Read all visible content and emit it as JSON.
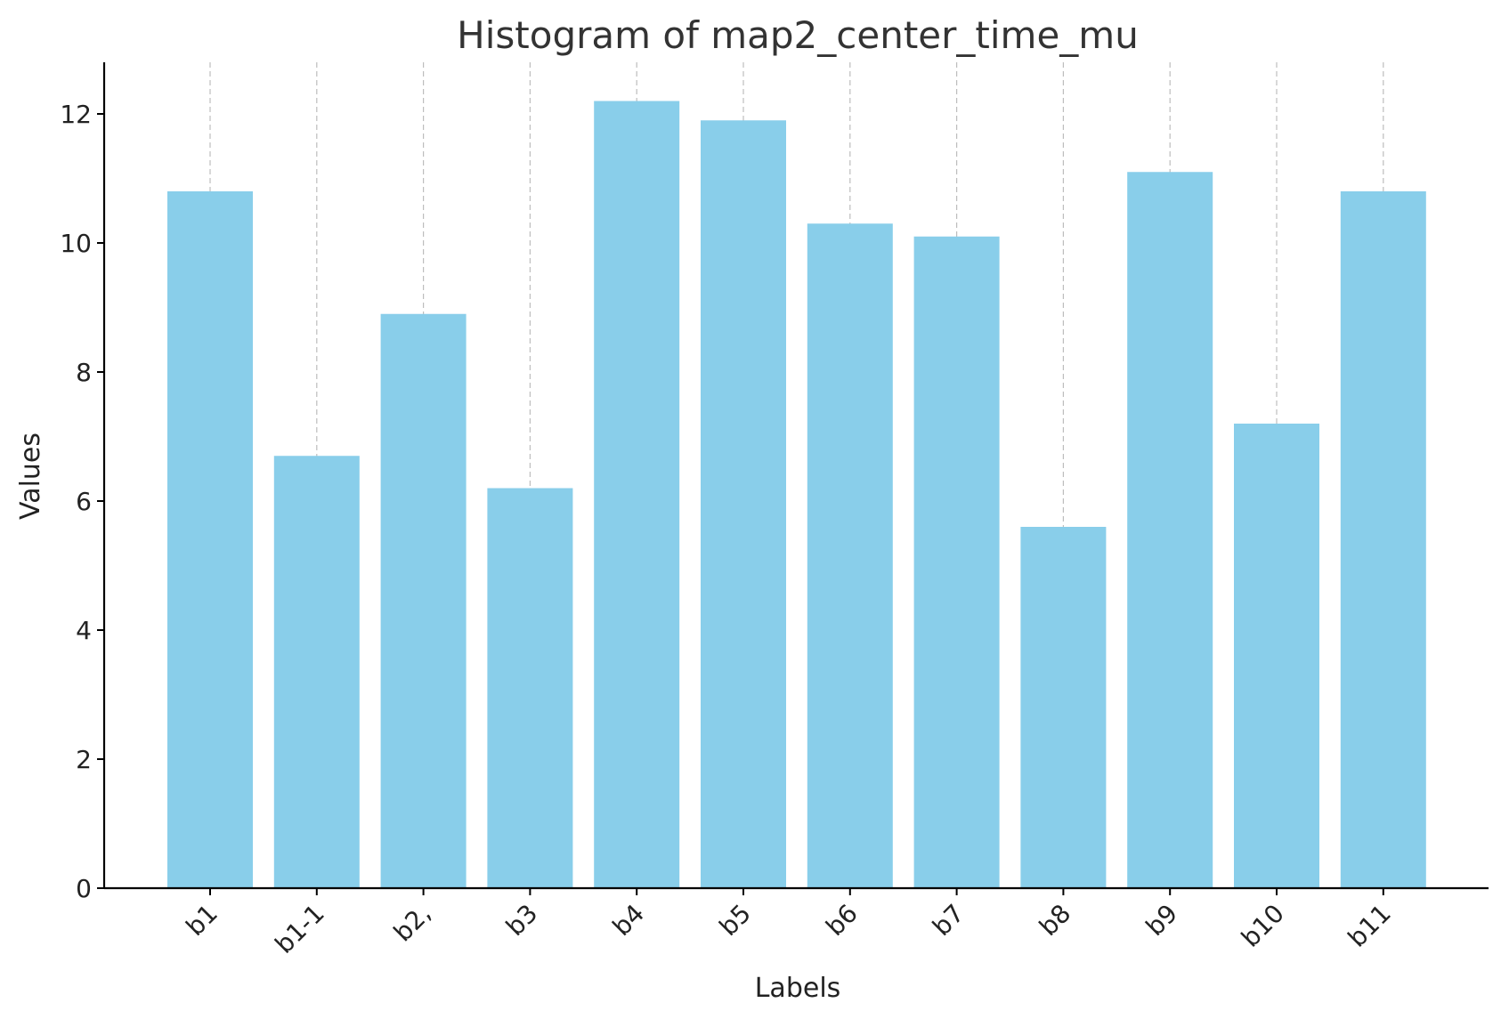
{
  "chart_data": {
    "type": "bar",
    "title": "Histogram of map2_center_time_mu",
    "xlabel": "Labels",
    "ylabel": "Values",
    "categories": [
      "b1",
      "b1-1",
      "b2,",
      "b3",
      "b4",
      "b5",
      "b6",
      "b7",
      "b8",
      "b9",
      "b10",
      "b11"
    ],
    "values": [
      10.8,
      6.7,
      8.9,
      6.2,
      12.2,
      11.9,
      10.3,
      10.1,
      5.6,
      11.1,
      7.2,
      10.8
    ],
    "ylim": [
      0,
      12.8
    ],
    "yticks": [
      0,
      2,
      4,
      6,
      8,
      10,
      12
    ],
    "grid": "vertical dashed lines at category ticks",
    "legend": "none",
    "bar_color": "#89CEEA"
  }
}
